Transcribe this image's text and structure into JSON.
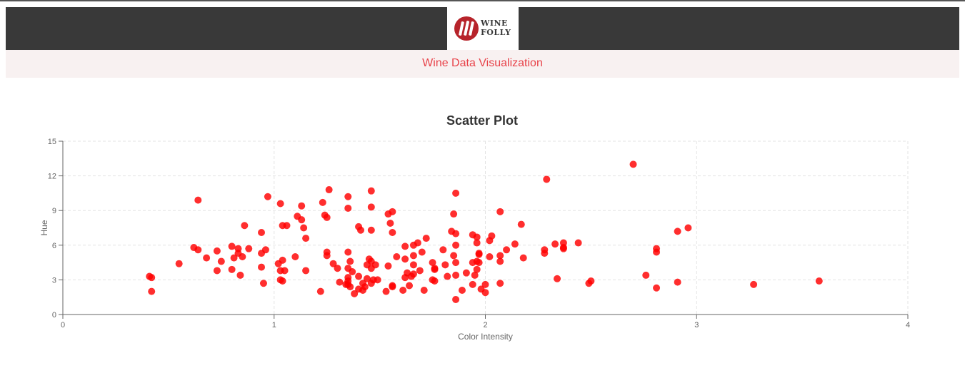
{
  "header": {
    "logo_line1": "WINE",
    "logo_line2": "FOLLY",
    "subtitle": "Wine Data Visualization"
  },
  "colors": {
    "point": "#ff0000",
    "subtitle": "#e8434a",
    "header_bg": "#393939"
  },
  "chart_data": {
    "type": "scatter",
    "title": "Scatter Plot",
    "xlabel": "Color Intensity",
    "ylabel": "Hue",
    "xlim": [
      0,
      4
    ],
    "ylim": [
      0,
      15
    ],
    "xticks": [
      0,
      1,
      2,
      3,
      4
    ],
    "yticks": [
      0,
      3,
      6,
      9,
      12,
      15
    ],
    "grid": true,
    "points": [
      [
        0.41,
        3.3
      ],
      [
        0.42,
        3.2
      ],
      [
        0.42,
        2.0
      ],
      [
        0.55,
        4.4
      ],
      [
        0.62,
        5.8
      ],
      [
        0.64,
        5.6
      ],
      [
        0.64,
        9.9
      ],
      [
        0.68,
        4.9
      ],
      [
        0.73,
        5.5
      ],
      [
        0.73,
        3.8
      ],
      [
        0.75,
        4.6
      ],
      [
        0.8,
        5.9
      ],
      [
        0.8,
        3.9
      ],
      [
        0.81,
        4.9
      ],
      [
        0.83,
        5.7
      ],
      [
        0.83,
        5.3
      ],
      [
        0.84,
        3.4
      ],
      [
        0.85,
        5.0
      ],
      [
        0.86,
        7.7
      ],
      [
        0.88,
        5.7
      ],
      [
        0.94,
        7.1
      ],
      [
        0.94,
        5.3
      ],
      [
        0.94,
        4.1
      ],
      [
        0.95,
        2.7
      ],
      [
        0.96,
        5.6
      ],
      [
        0.97,
        10.2
      ],
      [
        1.02,
        4.4
      ],
      [
        1.03,
        9.6
      ],
      [
        1.03,
        3.8
      ],
      [
        1.03,
        3.0
      ],
      [
        1.04,
        7.7
      ],
      [
        1.04,
        4.7
      ],
      [
        1.04,
        2.9
      ],
      [
        1.05,
        3.8
      ],
      [
        1.06,
        7.7
      ],
      [
        1.1,
        5.0
      ],
      [
        1.11,
        8.5
      ],
      [
        1.13,
        9.4
      ],
      [
        1.13,
        8.2
      ],
      [
        1.14,
        7.5
      ],
      [
        1.15,
        6.6
      ],
      [
        1.15,
        3.8
      ],
      [
        1.22,
        2.0
      ],
      [
        1.23,
        9.7
      ],
      [
        1.24,
        8.6
      ],
      [
        1.25,
        8.4
      ],
      [
        1.25,
        5.4
      ],
      [
        1.25,
        5.1
      ],
      [
        1.26,
        10.8
      ],
      [
        1.28,
        4.4
      ],
      [
        1.3,
        4.0
      ],
      [
        1.31,
        2.8
      ],
      [
        1.34,
        2.6
      ],
      [
        1.35,
        5.4
      ],
      [
        1.35,
        4.0
      ],
      [
        1.35,
        3.2
      ],
      [
        1.35,
        2.9
      ],
      [
        1.35,
        2.6
      ],
      [
        1.35,
        10.2
      ],
      [
        1.35,
        9.2
      ],
      [
        1.36,
        4.6
      ],
      [
        1.36,
        2.4
      ],
      [
        1.37,
        3.7
      ],
      [
        1.38,
        1.8
      ],
      [
        1.4,
        7.6
      ],
      [
        1.4,
        3.3
      ],
      [
        1.4,
        2.2
      ],
      [
        1.41,
        7.3
      ],
      [
        1.42,
        2.7
      ],
      [
        1.42,
        2.1
      ],
      [
        1.43,
        2.4
      ],
      [
        1.44,
        4.3
      ],
      [
        1.44,
        3.1
      ],
      [
        1.45,
        4.8
      ],
      [
        1.46,
        4.6
      ],
      [
        1.46,
        4.0
      ],
      [
        1.46,
        2.7
      ],
      [
        1.46,
        7.3
      ],
      [
        1.46,
        9.3
      ],
      [
        1.46,
        10.7
      ],
      [
        1.47,
        3.0
      ],
      [
        1.48,
        4.3
      ],
      [
        1.49,
        3.0
      ],
      [
        1.53,
        2.0
      ],
      [
        1.54,
        4.2
      ],
      [
        1.54,
        8.7
      ],
      [
        1.55,
        7.9
      ],
      [
        1.56,
        8.9
      ],
      [
        1.56,
        7.1
      ],
      [
        1.56,
        2.5
      ],
      [
        1.56,
        2.4
      ],
      [
        1.58,
        5.0
      ],
      [
        1.61,
        2.1
      ],
      [
        1.62,
        5.9
      ],
      [
        1.62,
        4.8
      ],
      [
        1.62,
        3.2
      ],
      [
        1.63,
        3.6
      ],
      [
        1.64,
        2.5
      ],
      [
        1.65,
        3.3
      ],
      [
        1.66,
        6.0
      ],
      [
        1.66,
        5.1
      ],
      [
        1.66,
        4.3
      ],
      [
        1.66,
        3.5
      ],
      [
        1.68,
        6.2
      ],
      [
        1.69,
        3.8
      ],
      [
        1.7,
        5.4
      ],
      [
        1.71,
        2.1
      ],
      [
        1.72,
        6.6
      ],
      [
        1.75,
        4.5
      ],
      [
        1.75,
        3.0
      ],
      [
        1.76,
        3.9
      ],
      [
        1.76,
        2.9
      ],
      [
        1.76,
        4.0
      ],
      [
        1.8,
        5.6
      ],
      [
        1.81,
        4.3
      ],
      [
        1.82,
        3.3
      ],
      [
        1.84,
        7.2
      ],
      [
        1.85,
        8.7
      ],
      [
        1.85,
        5.1
      ],
      [
        1.86,
        10.5
      ],
      [
        1.86,
        7.0
      ],
      [
        1.86,
        6.0
      ],
      [
        1.86,
        4.5
      ],
      [
        1.86,
        3.4
      ],
      [
        1.86,
        1.3
      ],
      [
        1.89,
        2.1
      ],
      [
        1.91,
        3.6
      ],
      [
        1.94,
        6.9
      ],
      [
        1.94,
        4.5
      ],
      [
        1.94,
        2.6
      ],
      [
        1.95,
        3.4
      ],
      [
        1.96,
        6.7
      ],
      [
        1.96,
        6.2
      ],
      [
        1.96,
        3.9
      ],
      [
        1.96,
        4.6
      ],
      [
        1.97,
        5.3
      ],
      [
        1.97,
        5.2
      ],
      [
        1.97,
        4.5
      ],
      [
        1.98,
        2.2
      ],
      [
        2.0,
        1.9
      ],
      [
        2.0,
        2.6
      ],
      [
        2.02,
        5.0
      ],
      [
        2.02,
        6.4
      ],
      [
        2.03,
        6.8
      ],
      [
        2.07,
        8.9
      ],
      [
        2.07,
        5.1
      ],
      [
        2.07,
        4.6
      ],
      [
        2.07,
        2.7
      ],
      [
        2.1,
        5.6
      ],
      [
        2.14,
        6.1
      ],
      [
        2.17,
        7.8
      ],
      [
        2.18,
        4.9
      ],
      [
        2.28,
        5.3
      ],
      [
        2.28,
        5.6
      ],
      [
        2.29,
        11.7
      ],
      [
        2.33,
        6.1
      ],
      [
        2.34,
        3.1
      ],
      [
        2.37,
        6.2
      ],
      [
        2.37,
        5.7
      ],
      [
        2.37,
        5.8
      ],
      [
        2.44,
        6.2
      ],
      [
        2.49,
        2.7
      ],
      [
        2.5,
        2.9
      ],
      [
        2.7,
        13.0
      ],
      [
        2.76,
        3.4
      ],
      [
        2.81,
        5.7
      ],
      [
        2.81,
        5.4
      ],
      [
        2.81,
        2.3
      ],
      [
        2.91,
        7.2
      ],
      [
        2.91,
        2.8
      ],
      [
        2.96,
        7.5
      ],
      [
        3.27,
        2.6
      ],
      [
        3.58,
        2.9
      ]
    ]
  }
}
